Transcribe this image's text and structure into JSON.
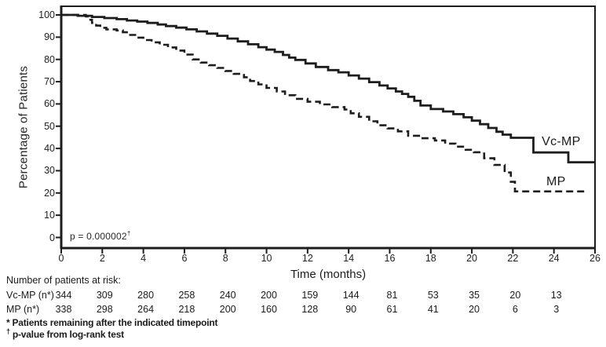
{
  "chart_data": {
    "type": "line",
    "subtype": "kaplan_meier_step",
    "title": "",
    "xlabel": "Time (months)",
    "ylabel": "Percentage of Patients",
    "xlim": [
      0,
      26
    ],
    "ylim": [
      0,
      100
    ],
    "x_ticks": [
      0,
      2,
      4,
      6,
      8,
      10,
      12,
      14,
      16,
      18,
      20,
      22,
      24,
      26
    ],
    "y_ticks": [
      0,
      10,
      20,
      30,
      40,
      50,
      60,
      70,
      80,
      90,
      100
    ],
    "grid": false,
    "axis_color": "#1d1d1d",
    "annotation": {
      "text": "p = 0.000002",
      "sup": "†"
    },
    "series": [
      {
        "name": "Vc-MP",
        "line_style": "solid",
        "color": "#1d1d1d",
        "label_pos": {
          "t": 24.35,
          "pct": 43
        },
        "end_t": 26,
        "points": [
          [
            0,
            100
          ],
          [
            0.8,
            99.6
          ],
          [
            1.5,
            99.1
          ],
          [
            2.1,
            98.6
          ],
          [
            2.7,
            98.1
          ],
          [
            3.2,
            97.5
          ],
          [
            3.7,
            97
          ],
          [
            4.2,
            96.4
          ],
          [
            4.7,
            95.7
          ],
          [
            5.1,
            95
          ],
          [
            5.6,
            94.3
          ],
          [
            6.1,
            93.5
          ],
          [
            6.6,
            92.6
          ],
          [
            7.1,
            91.6
          ],
          [
            7.6,
            90.6
          ],
          [
            8.1,
            89.4
          ],
          [
            8.6,
            88.1
          ],
          [
            9.1,
            86.8
          ],
          [
            9.6,
            85.5
          ],
          [
            10,
            84.4
          ],
          [
            10.4,
            83.4
          ],
          [
            10.8,
            82
          ],
          [
            11.1,
            80.8
          ],
          [
            11.4,
            79.8
          ],
          [
            11.9,
            78.2
          ],
          [
            12.4,
            76.6
          ],
          [
            13,
            75.2
          ],
          [
            13.5,
            74.2
          ],
          [
            14,
            72.8
          ],
          [
            14.5,
            71.4
          ],
          [
            15,
            69.8
          ],
          [
            15.5,
            68.3
          ],
          [
            15.9,
            67
          ],
          [
            16.3,
            65.6
          ],
          [
            16.6,
            64.5
          ],
          [
            16.9,
            63.2
          ],
          [
            17.2,
            61.4
          ],
          [
            17.5,
            59.3
          ],
          [
            18,
            57.7
          ],
          [
            18.6,
            56.6
          ],
          [
            19.1,
            55.4
          ],
          [
            19.6,
            54
          ],
          [
            20,
            52.5
          ],
          [
            20.4,
            50.9
          ],
          [
            20.8,
            49.2
          ],
          [
            21.2,
            47.5
          ],
          [
            21.5,
            46.2
          ],
          [
            21.9,
            44.8
          ],
          [
            23,
            38.2
          ],
          [
            24.7,
            33.8
          ]
        ]
      },
      {
        "name": "MP",
        "line_style": "dashed",
        "color": "#1d1d1d",
        "label_pos": {
          "t": 24.1,
          "pct": 24.8
        },
        "end_t": 25.5,
        "points": [
          [
            0,
            100
          ],
          [
            1.2,
            99.3
          ],
          [
            1.35,
            97.8
          ],
          [
            1.5,
            96.4
          ],
          [
            1.7,
            95.2
          ],
          [
            1.9,
            94.2
          ],
          [
            2.2,
            93.5
          ],
          [
            2.7,
            93
          ],
          [
            3,
            92.2
          ],
          [
            3.3,
            91
          ],
          [
            3.6,
            89.8
          ],
          [
            4,
            88.7
          ],
          [
            4.4,
            87.7
          ],
          [
            4.8,
            86.6
          ],
          [
            5.2,
            85.4
          ],
          [
            5.6,
            84
          ],
          [
            6,
            82.2
          ],
          [
            6.4,
            80
          ],
          [
            6.8,
            78.6
          ],
          [
            7.2,
            77.4
          ],
          [
            7.6,
            76.2
          ],
          [
            8,
            74.8
          ],
          [
            8.4,
            73.5
          ],
          [
            8.9,
            72
          ],
          [
            9.2,
            70.3
          ],
          [
            9.6,
            68.8
          ],
          [
            10,
            67.2
          ],
          [
            10.5,
            65.6
          ],
          [
            10.9,
            63.9
          ],
          [
            11.4,
            62.3
          ],
          [
            12,
            61
          ],
          [
            12.6,
            59.8
          ],
          [
            13.2,
            58.6
          ],
          [
            13.8,
            57.5
          ],
          [
            14.1,
            55.8
          ],
          [
            14.5,
            54.2
          ],
          [
            15,
            52.2
          ],
          [
            15.4,
            50.4
          ],
          [
            15.9,
            49
          ],
          [
            16.4,
            47.7
          ],
          [
            16.9,
            45.7
          ],
          [
            17.6,
            44.6
          ],
          [
            18.2,
            43.6
          ],
          [
            18.7,
            42.2
          ],
          [
            19.2,
            40.8
          ],
          [
            19.7,
            39.4
          ],
          [
            20.1,
            38.3
          ],
          [
            20.6,
            35.6
          ],
          [
            21.1,
            32.6
          ],
          [
            21.6,
            29.2
          ],
          [
            21.9,
            25
          ],
          [
            22.1,
            20.7
          ]
        ]
      }
    ]
  },
  "risk_table": {
    "title": "Number of patients at risk:",
    "timepoints": [
      0,
      2,
      4,
      6,
      8,
      10,
      12,
      14,
      16,
      18,
      20,
      22,
      24
    ],
    "rows": [
      {
        "label": "Vc-MP (n*)",
        "values": [
          344,
          309,
          280,
          258,
          240,
          200,
          159,
          144,
          81,
          53,
          35,
          20,
          13
        ]
      },
      {
        "label": "MP (n*)",
        "values": [
          338,
          298,
          264,
          218,
          200,
          160,
          128,
          90,
          61,
          41,
          20,
          6,
          3
        ]
      }
    ]
  },
  "footnotes": [
    {
      "marker": "*",
      "text": "Patients remaining after the indicated timepoint"
    },
    {
      "marker": "†",
      "text": "p-value from log-rank test"
    }
  ]
}
